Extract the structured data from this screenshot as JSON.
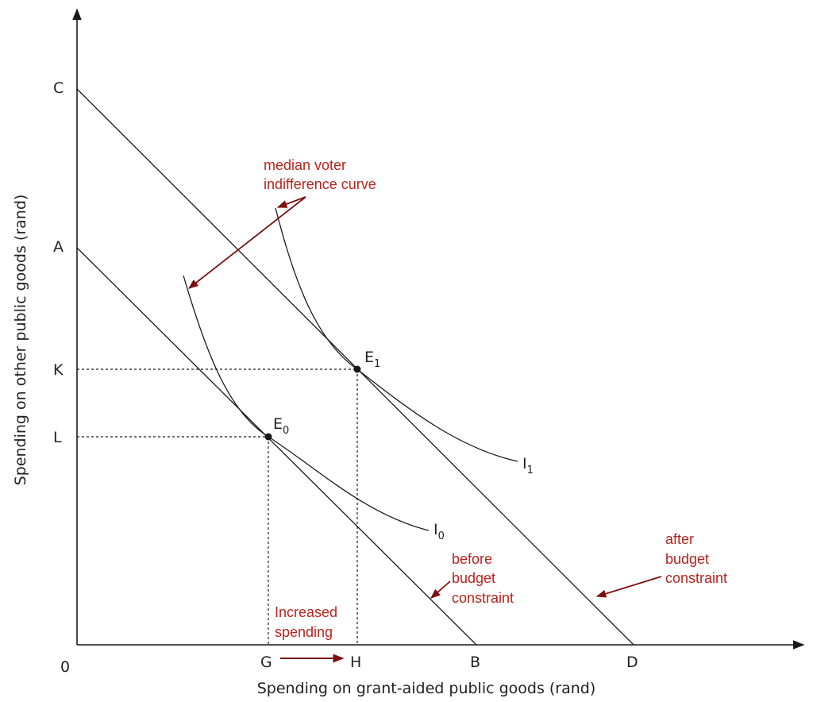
{
  "colors": {
    "ink": "#1a1a1a",
    "annotation": "#b3261e",
    "arrow": "#7a1010"
  },
  "axes": {
    "y_title": "Spending on other public goods (rand)",
    "x_title": "Spending on grant-aided public goods (rand)",
    "origin": "0",
    "y_ticks": {
      "c": "C",
      "a": "A",
      "k": "K",
      "l": "L"
    },
    "x_ticks": {
      "g": "G",
      "h": "H",
      "b": "B",
      "d": "D"
    }
  },
  "points": {
    "e0": {
      "base": "E",
      "sub": "0"
    },
    "e1": {
      "base": "E",
      "sub": "1"
    }
  },
  "curves": {
    "i0": {
      "base": "I",
      "sub": "0"
    },
    "i1": {
      "base": "I",
      "sub": "1"
    }
  },
  "annotations": {
    "median_voter": [
      "median voter",
      "indifference curve"
    ],
    "before": [
      "before",
      "budget",
      "constraint"
    ],
    "after": [
      "after",
      "budget",
      "constraint"
    ],
    "increased": [
      "Increased",
      "spending"
    ]
  }
}
